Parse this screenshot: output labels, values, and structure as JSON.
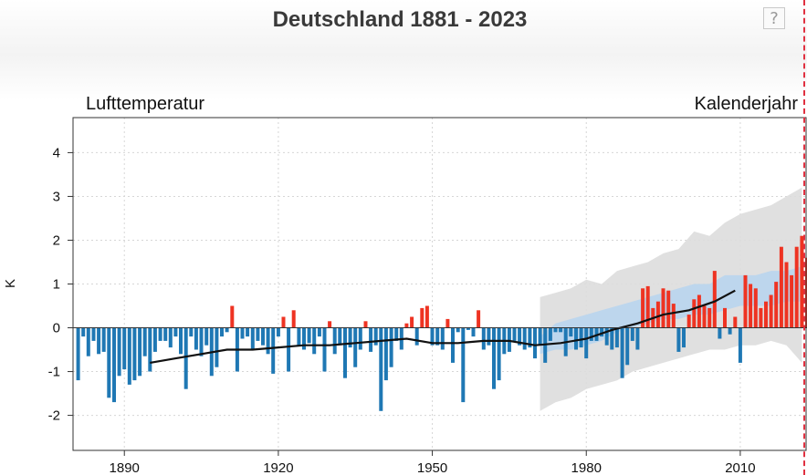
{
  "page": {
    "title": "Deutschland 1881 - 2023",
    "help_label": "?",
    "help_icon": "question-mark-icon"
  },
  "chart_data": {
    "type": "bar",
    "title": "Deutschland 1881 - 2023",
    "subtitle_left": "Lufttemperatur",
    "subtitle_right": "Kalenderjahr",
    "xlabel": "",
    "ylabel": "K",
    "xlim": [
      1880,
      2023
    ],
    "ylim": [
      -2.8,
      4.8
    ],
    "xticks": [
      1890,
      1920,
      1950,
      1980,
      2010
    ],
    "yticks": [
      -2,
      -1,
      0,
      1,
      2,
      3,
      4
    ],
    "grid": true,
    "colors": {
      "positive": "#ee3322",
      "negative": "#1f78b4",
      "trend": "#111111",
      "projection": "#dddddd",
      "projection_core": "#b9d5ee"
    },
    "bar_series": {
      "name": "",
      "x": [
        1881,
        1882,
        1883,
        1884,
        1885,
        1886,
        1887,
        1888,
        1889,
        1890,
        1891,
        1892,
        1893,
        1894,
        1895,
        1896,
        1897,
        1898,
        1899,
        1900,
        1901,
        1902,
        1903,
        1904,
        1905,
        1906,
        1907,
        1908,
        1909,
        1910,
        1911,
        1912,
        1913,
        1914,
        1915,
        1916,
        1917,
        1918,
        1919,
        1920,
        1921,
        1922,
        1923,
        1924,
        1925,
        1926,
        1927,
        1928,
        1929,
        1930,
        1931,
        1932,
        1933,
        1934,
        1935,
        1936,
        1937,
        1938,
        1939,
        1940,
        1941,
        1942,
        1943,
        1944,
        1945,
        1946,
        1947,
        1948,
        1949,
        1950,
        1951,
        1952,
        1953,
        1954,
        1955,
        1956,
        1957,
        1958,
        1959,
        1960,
        1961,
        1962,
        1963,
        1964,
        1965,
        1966,
        1967,
        1968,
        1969,
        1970,
        1971,
        1972,
        1973,
        1974,
        1975,
        1976,
        1977,
        1978,
        1979,
        1980,
        1981,
        1982,
        1983,
        1984,
        1985,
        1986,
        1987,
        1988,
        1989,
        1990,
        1991,
        1992,
        1993,
        1994,
        1995,
        1996,
        1997,
        1998,
        1999,
        2000,
        2001,
        2002,
        2003,
        2004,
        2005,
        2006,
        2007,
        2008,
        2009,
        2010,
        2011,
        2012,
        2013,
        2014,
        2015,
        2016,
        2017,
        2018,
        2019,
        2020,
        2021,
        2022,
        2023
      ],
      "values": [
        -1.2,
        -0.2,
        -0.65,
        -0.3,
        -0.6,
        -0.55,
        -1.6,
        -1.7,
        -1.1,
        -0.95,
        -1.3,
        -1.2,
        -1.1,
        -0.65,
        -1.0,
        -0.55,
        -0.3,
        -0.3,
        -0.45,
        -0.2,
        -0.6,
        -1.4,
        -0.2,
        -0.5,
        -0.65,
        -0.4,
        -1.1,
        -0.9,
        -0.2,
        -0.1,
        0.5,
        -1.0,
        -0.25,
        -0.2,
        -0.5,
        -0.3,
        -0.4,
        -0.6,
        -1.05,
        -0.2,
        0.25,
        -1.0,
        0.4,
        -0.4,
        -0.5,
        -0.35,
        -0.6,
        -0.2,
        -1.0,
        0.15,
        -0.6,
        -0.4,
        -1.15,
        -0.45,
        -0.9,
        -0.5,
        0.15,
        -0.55,
        -0.4,
        -1.9,
        -1.2,
        -0.9,
        -0.3,
        -0.5,
        0.1,
        0.25,
        -0.4,
        0.45,
        0.5,
        -0.4,
        -0.4,
        -0.5,
        0.2,
        -0.8,
        -0.1,
        -1.7,
        -0.05,
        -0.2,
        0.4,
        -0.5,
        -0.4,
        -1.4,
        -1.2,
        -0.6,
        -0.55,
        -0.3,
        -0.4,
        -0.5,
        -0.45,
        -0.7,
        -0.4,
        -0.8,
        -0.3,
        -0.1,
        -0.1,
        -0.65,
        -0.2,
        -0.5,
        -0.45,
        -0.7,
        -0.3,
        -0.3,
        -0.2,
        -0.4,
        -0.5,
        -0.45,
        -1.15,
        -0.85,
        -0.3,
        -0.5,
        0.9,
        0.95,
        0.45,
        0.6,
        0.9,
        0.85,
        0.55,
        -0.55,
        -0.45,
        0.3,
        0.65,
        0.75,
        0.5,
        0.45,
        1.3,
        -0.25,
        0.45,
        -0.15,
        0.25,
        -0.8,
        1.2,
        1.0,
        0.9,
        0.45,
        0.6,
        0.75,
        1.05,
        1.85,
        1.5,
        1.2,
        1.85,
        2.1,
        1.6
      ]
    },
    "trend_series": {
      "name": "",
      "x": [
        1895,
        1900,
        1905,
        1910,
        1915,
        1920,
        1925,
        1930,
        1935,
        1940,
        1945,
        1950,
        1955,
        1960,
        1965,
        1970,
        1975,
        1980,
        1985,
        1990,
        1995,
        2000,
        2005,
        2009
      ],
      "values": [
        -0.8,
        -0.7,
        -0.6,
        -0.5,
        -0.5,
        -0.45,
        -0.4,
        -0.4,
        -0.35,
        -0.3,
        -0.25,
        -0.35,
        -0.35,
        -0.3,
        -0.3,
        -0.4,
        -0.35,
        -0.25,
        -0.05,
        0.1,
        0.3,
        0.4,
        0.6,
        0.85
      ]
    },
    "projection_series": {
      "name": "",
      "x": [
        1971,
        1974,
        1977,
        1980,
        1983,
        1986,
        1989,
        1992,
        1995,
        1998,
        2001,
        2004,
        2007,
        2010,
        2013,
        2016,
        2019,
        2022
      ],
      "upper": [
        0.7,
        0.8,
        0.9,
        1.1,
        1.0,
        1.3,
        1.4,
        1.5,
        1.7,
        1.8,
        2.2,
        2.1,
        2.4,
        2.6,
        2.7,
        2.8,
        3.0,
        3.2
      ],
      "lower": [
        -1.9,
        -1.7,
        -1.6,
        -1.4,
        -1.3,
        -1.2,
        -1.0,
        -0.9,
        -0.8,
        -0.7,
        -0.6,
        -0.5,
        -0.5,
        -0.4,
        -0.4,
        -0.3,
        -0.4,
        -0.8
      ],
      "core_upper": [
        -0.2,
        0.1,
        0.2,
        0.3,
        0.4,
        0.5,
        0.6,
        0.7,
        0.8,
        0.9,
        1.0,
        1.0,
        1.2,
        1.2,
        1.2,
        1.3,
        1.3,
        1.4
      ],
      "core_lower": [
        -0.6,
        -0.5,
        -0.5,
        -0.4,
        -0.3,
        -0.1,
        0.0,
        0.1,
        0.2,
        0.2,
        0.3,
        0.3,
        0.4,
        0.5,
        0.5,
        0.5,
        0.6,
        0.6
      ]
    }
  }
}
